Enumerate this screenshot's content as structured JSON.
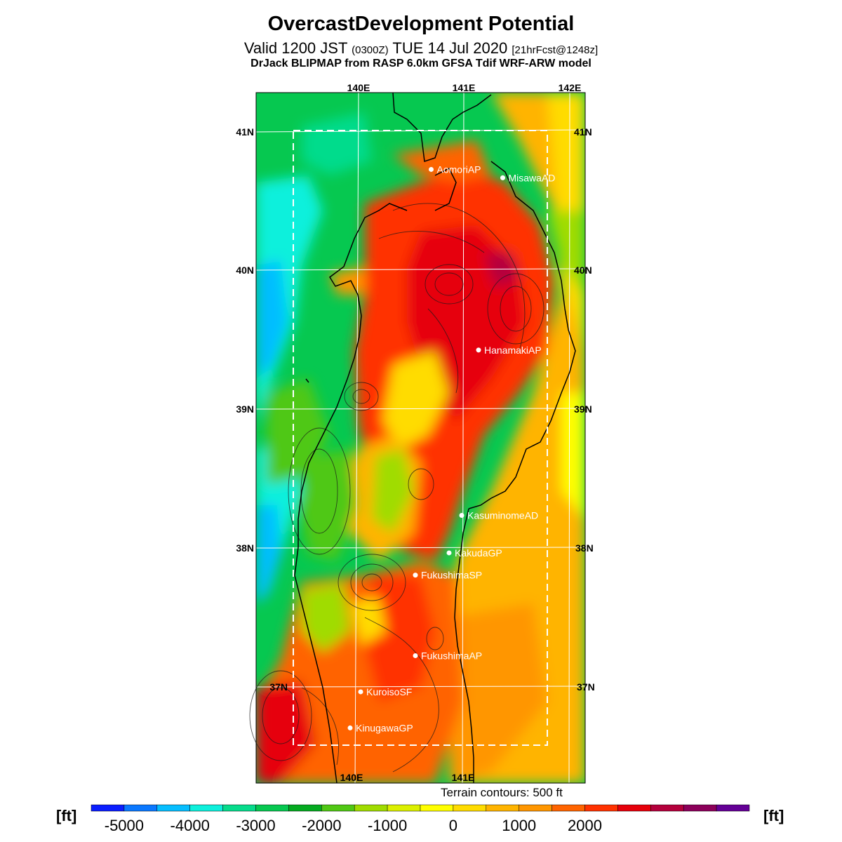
{
  "header": {
    "title": "OvercastDevelopment Potential",
    "valid_prefix": "Valid 1200 JST",
    "valid_z": "(0300Z)",
    "valid_date": "TUE 14 Jul 2020",
    "forecast": "[21hrFcst@1248z]",
    "model": "DrJack BLIPMAP from RASP 6.0km GFSA Tdif WRF-ARW model"
  },
  "map": {
    "lon_labels_top": [
      "140E",
      "141E",
      "142E"
    ],
    "lon_labels_bottom": [
      "140E",
      "141E"
    ],
    "lat_labels_left": [
      "41N",
      "40N",
      "39N",
      "38N",
      "37N"
    ],
    "lat_labels_right": [
      "41N",
      "40N",
      "39N",
      "38N",
      "37N"
    ],
    "stations": [
      {
        "name": "AomoriAP",
        "lat": 40.73,
        "lon": 140.69
      },
      {
        "name": "MisawaAD",
        "lat": 40.67,
        "lon": 141.37
      },
      {
        "name": "HanamakiAP",
        "lat": 39.43,
        "lon": 141.14
      },
      {
        "name": "KasuminomeAD",
        "lat": 38.24,
        "lon": 140.98
      },
      {
        "name": "KakudaGP",
        "lat": 37.97,
        "lon": 140.86
      },
      {
        "name": "FukushimaSP",
        "lat": 37.81,
        "lon": 140.54
      },
      {
        "name": "FukushimaAP",
        "lat": 37.23,
        "lon": 140.54
      },
      {
        "name": "KuroisoSF",
        "lat": 36.97,
        "lon": 140.02
      },
      {
        "name": "KinugawaGP",
        "lat": 36.71,
        "lon": 139.92
      }
    ],
    "terrain_note": "Terrain contours: 500 ft"
  },
  "legend": {
    "unit": "[ft]",
    "tick_labels": [
      "-5000",
      "-4000",
      "-3000",
      "-2000",
      "-1000",
      "0",
      "1000",
      "2000"
    ],
    "colors": [
      "#0a1eff",
      "#0a78ff",
      "#06beff",
      "#0ef0dc",
      "#06dc8c",
      "#06c850",
      "#04aa20",
      "#50c814",
      "#a0dc00",
      "#dcf000",
      "#ffff00",
      "#ffdc00",
      "#ffb400",
      "#ff9600",
      "#ff6400",
      "#ff3200",
      "#e6000a",
      "#b4003c",
      "#8c005a",
      "#640096"
    ]
  }
}
